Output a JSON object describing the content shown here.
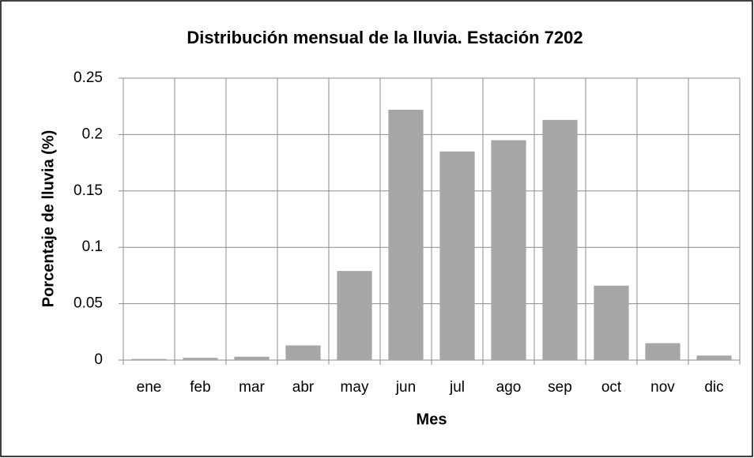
{
  "chart_data": {
    "type": "bar",
    "title": "Distribución mensual de la lluvia. Estación 7202",
    "x_label": "Mes",
    "y_label": "Porcentaje de lluvia (%)",
    "categories": [
      "ene",
      "feb",
      "mar",
      "abr",
      "may",
      "jun",
      "jul",
      "ago",
      "sep",
      "oct",
      "nov",
      "dic"
    ],
    "values": [
      0.001,
      0.002,
      0.003,
      0.013,
      0.079,
      0.222,
      0.185,
      0.195,
      0.213,
      0.066,
      0.015,
      0.004
    ],
    "color": "#a6a6a6",
    "ylim": [
      0,
      0.25
    ],
    "yticks": [
      0,
      0.05,
      0.1,
      0.15,
      0.2,
      0.25
    ],
    "grid": true
  }
}
